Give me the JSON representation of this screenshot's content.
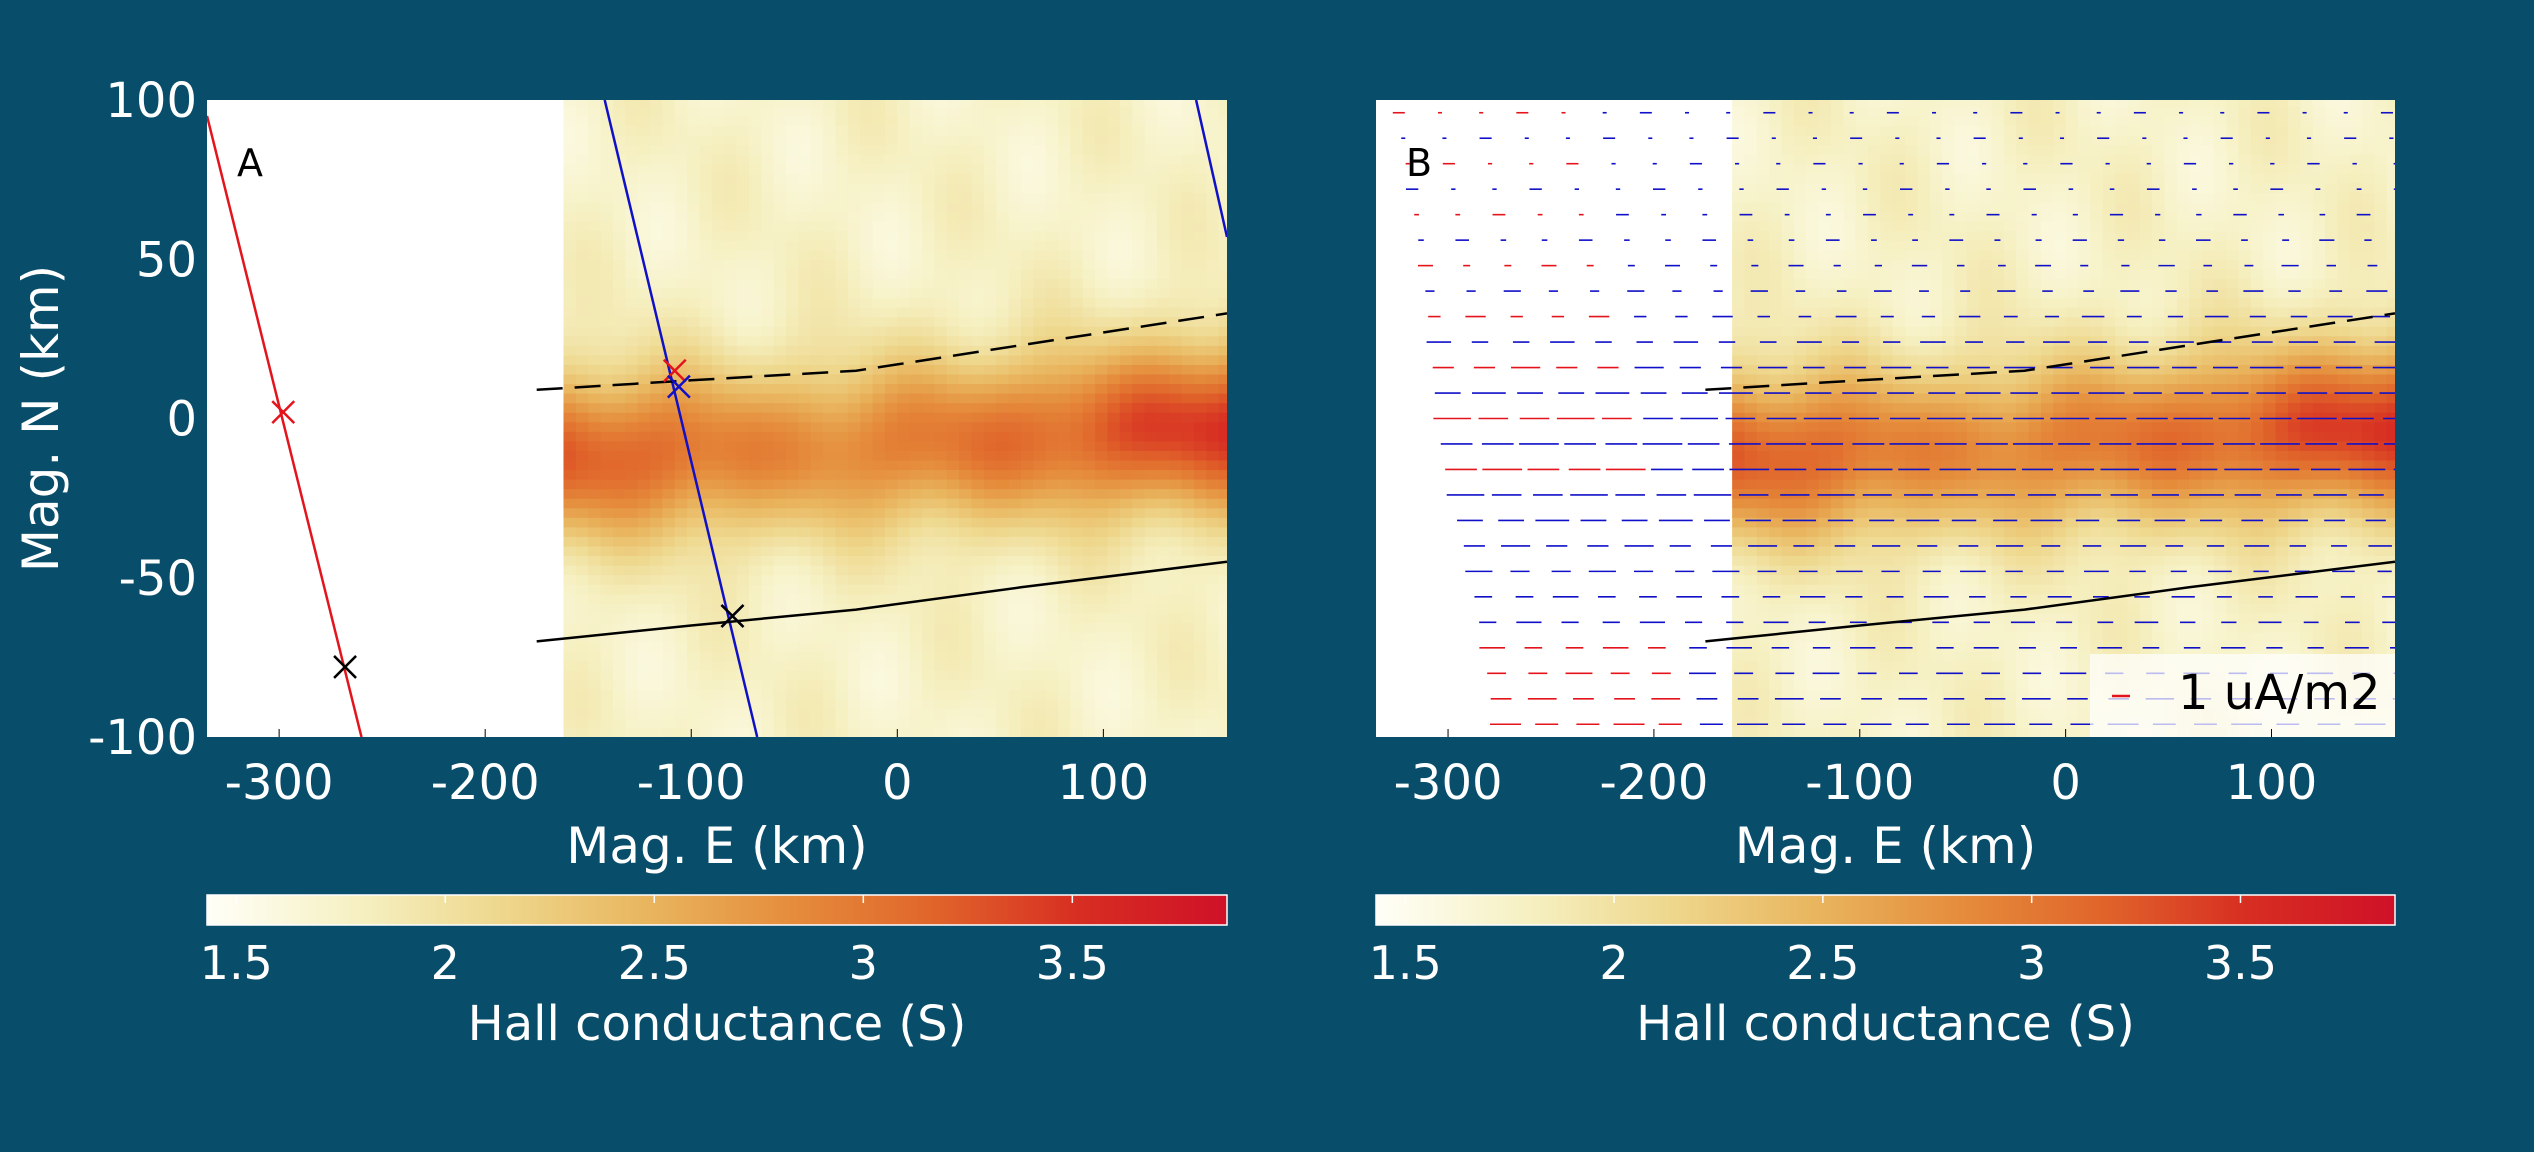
{
  "colors": {
    "background": "#084d69",
    "text": "#ffffff",
    "red_line": "#e4141c",
    "blue_line": "#1010c8",
    "black_line": "#000000",
    "colormap": [
      "#fffff8",
      "#f6f1c4",
      "#eed88e",
      "#e9b65f",
      "#e58d3c",
      "#e0642a",
      "#d72d22",
      "#cf1128"
    ]
  },
  "chart_data": [
    {
      "type": "heatmap",
      "panel_label": "A",
      "title": "",
      "xlabel": "Mag. E (km)",
      "ylabel": "Mag. N (km)",
      "xlim": [
        -335,
        160
      ],
      "ylim": [
        -100,
        100
      ],
      "xticks": [
        -300,
        -200,
        -100,
        0,
        100
      ],
      "xtick_labels": [
        "-300",
        "-200",
        "-100",
        "0",
        "100"
      ],
      "yticks": [
        100,
        50,
        0,
        -50,
        -100
      ],
      "ytick_labels": [
        "100",
        "50",
        "0",
        "-50",
        "-100"
      ],
      "data_extent_x": [
        -162,
        160
      ],
      "conductance_field": {
        "background": 1.75,
        "band_center": [
          [
            -162,
            -12
          ],
          [
            -60,
            -10
          ],
          [
            0,
            -8
          ],
          [
            60,
            -6
          ],
          [
            160,
            -2
          ]
        ],
        "band_peak": [
          [
            -162,
            3.2
          ],
          [
            -110,
            3.1
          ],
          [
            -60,
            2.8
          ],
          [
            0,
            2.95
          ],
          [
            60,
            3.05
          ],
          [
            100,
            3.25
          ],
          [
            160,
            3.5
          ]
        ],
        "band_halfwidth": 26
      },
      "lines": [
        {
          "name": "red-track",
          "color": "#e4141c",
          "style": "solid",
          "points": [
            [
              -335,
              95
            ],
            [
              -260,
              -100
            ]
          ]
        },
        {
          "name": "blue-track-1",
          "color": "#1010c8",
          "style": "solid",
          "points": [
            [
              -142,
              100
            ],
            [
              -68,
              -100
            ]
          ]
        },
        {
          "name": "blue-track-2",
          "color": "#1010c8",
          "style": "solid",
          "points": [
            [
              145,
              100
            ],
            [
              160,
              57
            ]
          ]
        },
        {
          "name": "dashed-boundary",
          "color": "#000000",
          "style": "dashed",
          "points": [
            [
              -175,
              9
            ],
            [
              -100,
              12
            ],
            [
              -20,
              15
            ],
            [
              0,
              17
            ],
            [
              60,
              23
            ],
            [
              160,
              33
            ]
          ]
        },
        {
          "name": "solid-boundary",
          "color": "#000000",
          "style": "solid",
          "points": [
            [
              -175,
              -70
            ],
            [
              -100,
              -65
            ],
            [
              -20,
              -60
            ],
            [
              60,
              -53
            ],
            [
              160,
              -45
            ]
          ]
        }
      ],
      "markers": [
        {
          "name": "red-marker-1",
          "color": "#e4141c",
          "x": -298,
          "y": 2
        },
        {
          "name": "red-marker-2",
          "color": "#e4141c",
          "x": -108,
          "y": 15
        },
        {
          "name": "blue-marker-1",
          "color": "#1010c8",
          "x": -106,
          "y": 10
        },
        {
          "name": "blue-marker-2",
          "color": "#1010c8",
          "x": -80,
          "y": -62
        },
        {
          "name": "black-marker-1",
          "color": "#000000",
          "x": -268,
          "y": -78
        },
        {
          "name": "black-marker-2",
          "color": "#000000",
          "x": -80,
          "y": -62
        }
      ],
      "colorbar": {
        "label": "Hall conductance (S)",
        "range": [
          1.43,
          3.87
        ],
        "ticks": [
          1.5,
          2,
          2.5,
          3,
          3.5
        ],
        "tick_labels": [
          "1.5",
          "2",
          "2.5",
          "3",
          "3.5"
        ]
      }
    },
    {
      "type": "heatmap",
      "panel_label": "B",
      "title": "",
      "xlabel": "Mag. E (km)",
      "ylabel": "",
      "xlim": [
        -335,
        160
      ],
      "ylim": [
        -100,
        100
      ],
      "xticks": [
        -300,
        -200,
        -100,
        0,
        100
      ],
      "xtick_labels": [
        "-300",
        "-200",
        "-100",
        "0",
        "100"
      ],
      "data_extent_x": [
        -162,
        160
      ],
      "conductance_field": {
        "background": 1.75,
        "band_center": [
          [
            -162,
            -12
          ],
          [
            -60,
            -10
          ],
          [
            0,
            -8
          ],
          [
            60,
            -6
          ],
          [
            160,
            -2
          ]
        ],
        "band_peak": [
          [
            -162,
            3.2
          ],
          [
            -110,
            3.1
          ],
          [
            -60,
            2.8
          ],
          [
            0,
            2.95
          ],
          [
            60,
            3.05
          ],
          [
            100,
            3.25
          ],
          [
            160,
            3.5
          ]
        ],
        "band_halfwidth": 26
      },
      "lines": [
        {
          "name": "dashed-boundary",
          "color": "#000000",
          "style": "dashed",
          "points": [
            [
              -175,
              9
            ],
            [
              -100,
              12
            ],
            [
              -20,
              15
            ],
            [
              0,
              17
            ],
            [
              60,
              23
            ],
            [
              160,
              33
            ]
          ]
        },
        {
          "name": "solid-boundary",
          "color": "#000000",
          "style": "solid",
          "points": [
            [
              -175,
              -70
            ],
            [
              -100,
              -65
            ],
            [
              -20,
              -60
            ],
            [
              60,
              -53
            ],
            [
              160,
              -45
            ]
          ]
        }
      ],
      "current_vectors": {
        "units": "uA/m2",
        "columns_x": [
          -325,
          -305,
          -285,
          -265,
          -245,
          -225,
          -205,
          -185,
          -165,
          -145,
          -125,
          -105,
          -85,
          -65,
          -45,
          -25,
          -5,
          15,
          35,
          55,
          75,
          95,
          115,
          135,
          155
        ],
        "row_y_step": 8,
        "red_columns_x": [
          -325,
          -305,
          -285,
          -265,
          -245
        ],
        "blue_color": "#1010c8",
        "red_color": "#e4141c"
      },
      "legend": {
        "placement": "bottom-right",
        "label": "1 uA/m2",
        "marker_color": "#e4141c",
        "marker_value": 1
      },
      "colorbar": {
        "label": "Hall conductance (S)",
        "range": [
          1.43,
          3.87
        ],
        "ticks": [
          1.5,
          2,
          2.5,
          3,
          3.5
        ],
        "tick_labels": [
          "1.5",
          "2",
          "2.5",
          "3",
          "3.5"
        ]
      }
    }
  ]
}
